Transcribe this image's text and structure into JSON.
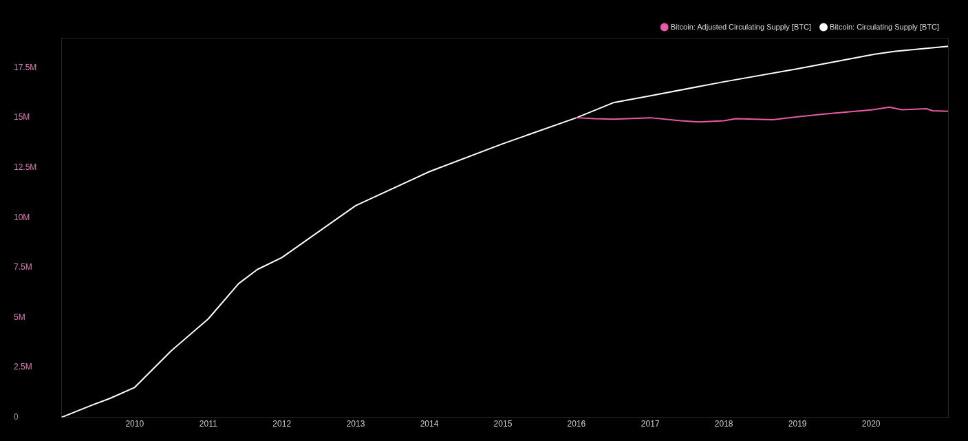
{
  "chart_data": {
    "type": "line",
    "legend": "top right",
    "grid": false,
    "marker": "none",
    "line_style": "solid",
    "xlim": [
      "2009-01-03",
      "2021-01-20"
    ],
    "xticks": [
      "2010",
      "2011",
      "2012",
      "2013",
      "2014",
      "2015",
      "2016",
      "2017",
      "2018",
      "2019",
      "2020"
    ],
    "ylim": [
      0,
      19000000
    ],
    "yticks": [
      {
        "value": 0,
        "label": "0"
      },
      {
        "value": 2500000,
        "label": "2.5M"
      },
      {
        "value": 5000000,
        "label": "5M"
      },
      {
        "value": 7500000,
        "label": "7.5M"
      },
      {
        "value": 10000000,
        "label": "10M"
      },
      {
        "value": 12500000,
        "label": "12.5M"
      },
      {
        "value": 15000000,
        "label": "15M"
      },
      {
        "value": 17500000,
        "label": "17.5M"
      }
    ],
    "series": [
      {
        "name": "Bitcoin: Adjusted Circulating Supply [BTC]",
        "color": "#e85aa6",
        "x": [
          "2016-01-01",
          "2016-04-01",
          "2016-07-01",
          "2017-01-01",
          "2017-06-01",
          "2017-09-01",
          "2018-01-01",
          "2018-03-01",
          "2018-09-01",
          "2019-01-01",
          "2019-06-01",
          "2020-01-01",
          "2020-04-01",
          "2020-06-01",
          "2020-10-01",
          "2020-11-01",
          "2021-01-20"
        ],
        "values": [
          15000000,
          14950000,
          14930000,
          15000000,
          14850000,
          14790000,
          14850000,
          14950000,
          14900000,
          15050000,
          15200000,
          15390000,
          15530000,
          15400000,
          15450000,
          15350000,
          15320000
        ]
      },
      {
        "name": "Bitcoin: Circulating Supply [BTC]",
        "color": "#ffffff",
        "x": [
          "2009-01-03",
          "2009-06-01",
          "2009-09-01",
          "2010-01-01",
          "2010-07-01",
          "2011-01-01",
          "2011-06-01",
          "2011-09-01",
          "2012-01-01",
          "2013-01-01",
          "2014-01-01",
          "2015-01-01",
          "2016-01-01",
          "2016-07-01",
          "2017-01-01",
          "2018-01-01",
          "2019-01-01",
          "2020-01-01",
          "2020-05-01",
          "2021-01-20"
        ],
        "values": [
          0,
          600000,
          950000,
          1500000,
          3330000,
          4930000,
          6700000,
          7400000,
          8000000,
          10600000,
          12300000,
          13700000,
          15000000,
          15750000,
          16100000,
          16800000,
          17450000,
          18150000,
          18330000,
          18580000
        ]
      }
    ]
  }
}
